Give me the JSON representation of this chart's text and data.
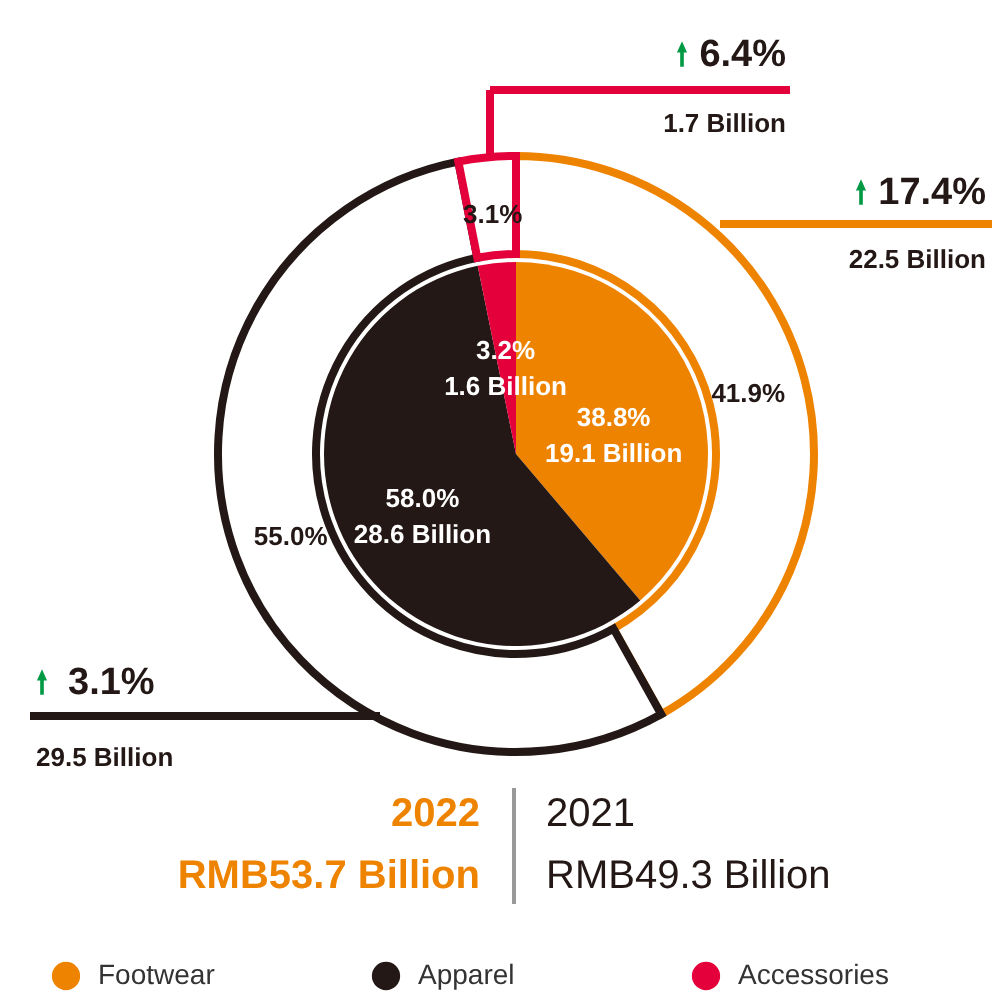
{
  "chart_data": {
    "type": "donut",
    "categories": [
      "Footwear",
      "Apparel",
      "Accessories"
    ],
    "colors": [
      "#ee8300",
      "#231815",
      "#e4003b"
    ],
    "series": [
      {
        "values": [
          41.9,
          55.0,
          3.1
        ],
        "value_labels": [
          "41.9%",
          "55.0%",
          "3.1%"
        ]
      },
      {
        "values": [
          38.8,
          58.0,
          3.2
        ],
        "value_labels": [
          "38.8%\n19.1 Billion",
          "58.0%\n28.6 Billion",
          "3.2%\n1.6 Billion"
        ]
      }
    ],
    "annotations": [
      "17.4%",
      "22.5 Billion",
      "3.1%",
      "29.5 Billion",
      "6.4%",
      "1.7 Billion",
      "2022",
      "RMB53.7 Billion",
      "2021",
      "RMB49.3 Billion"
    ],
    "legend": "bottom"
  }
}
